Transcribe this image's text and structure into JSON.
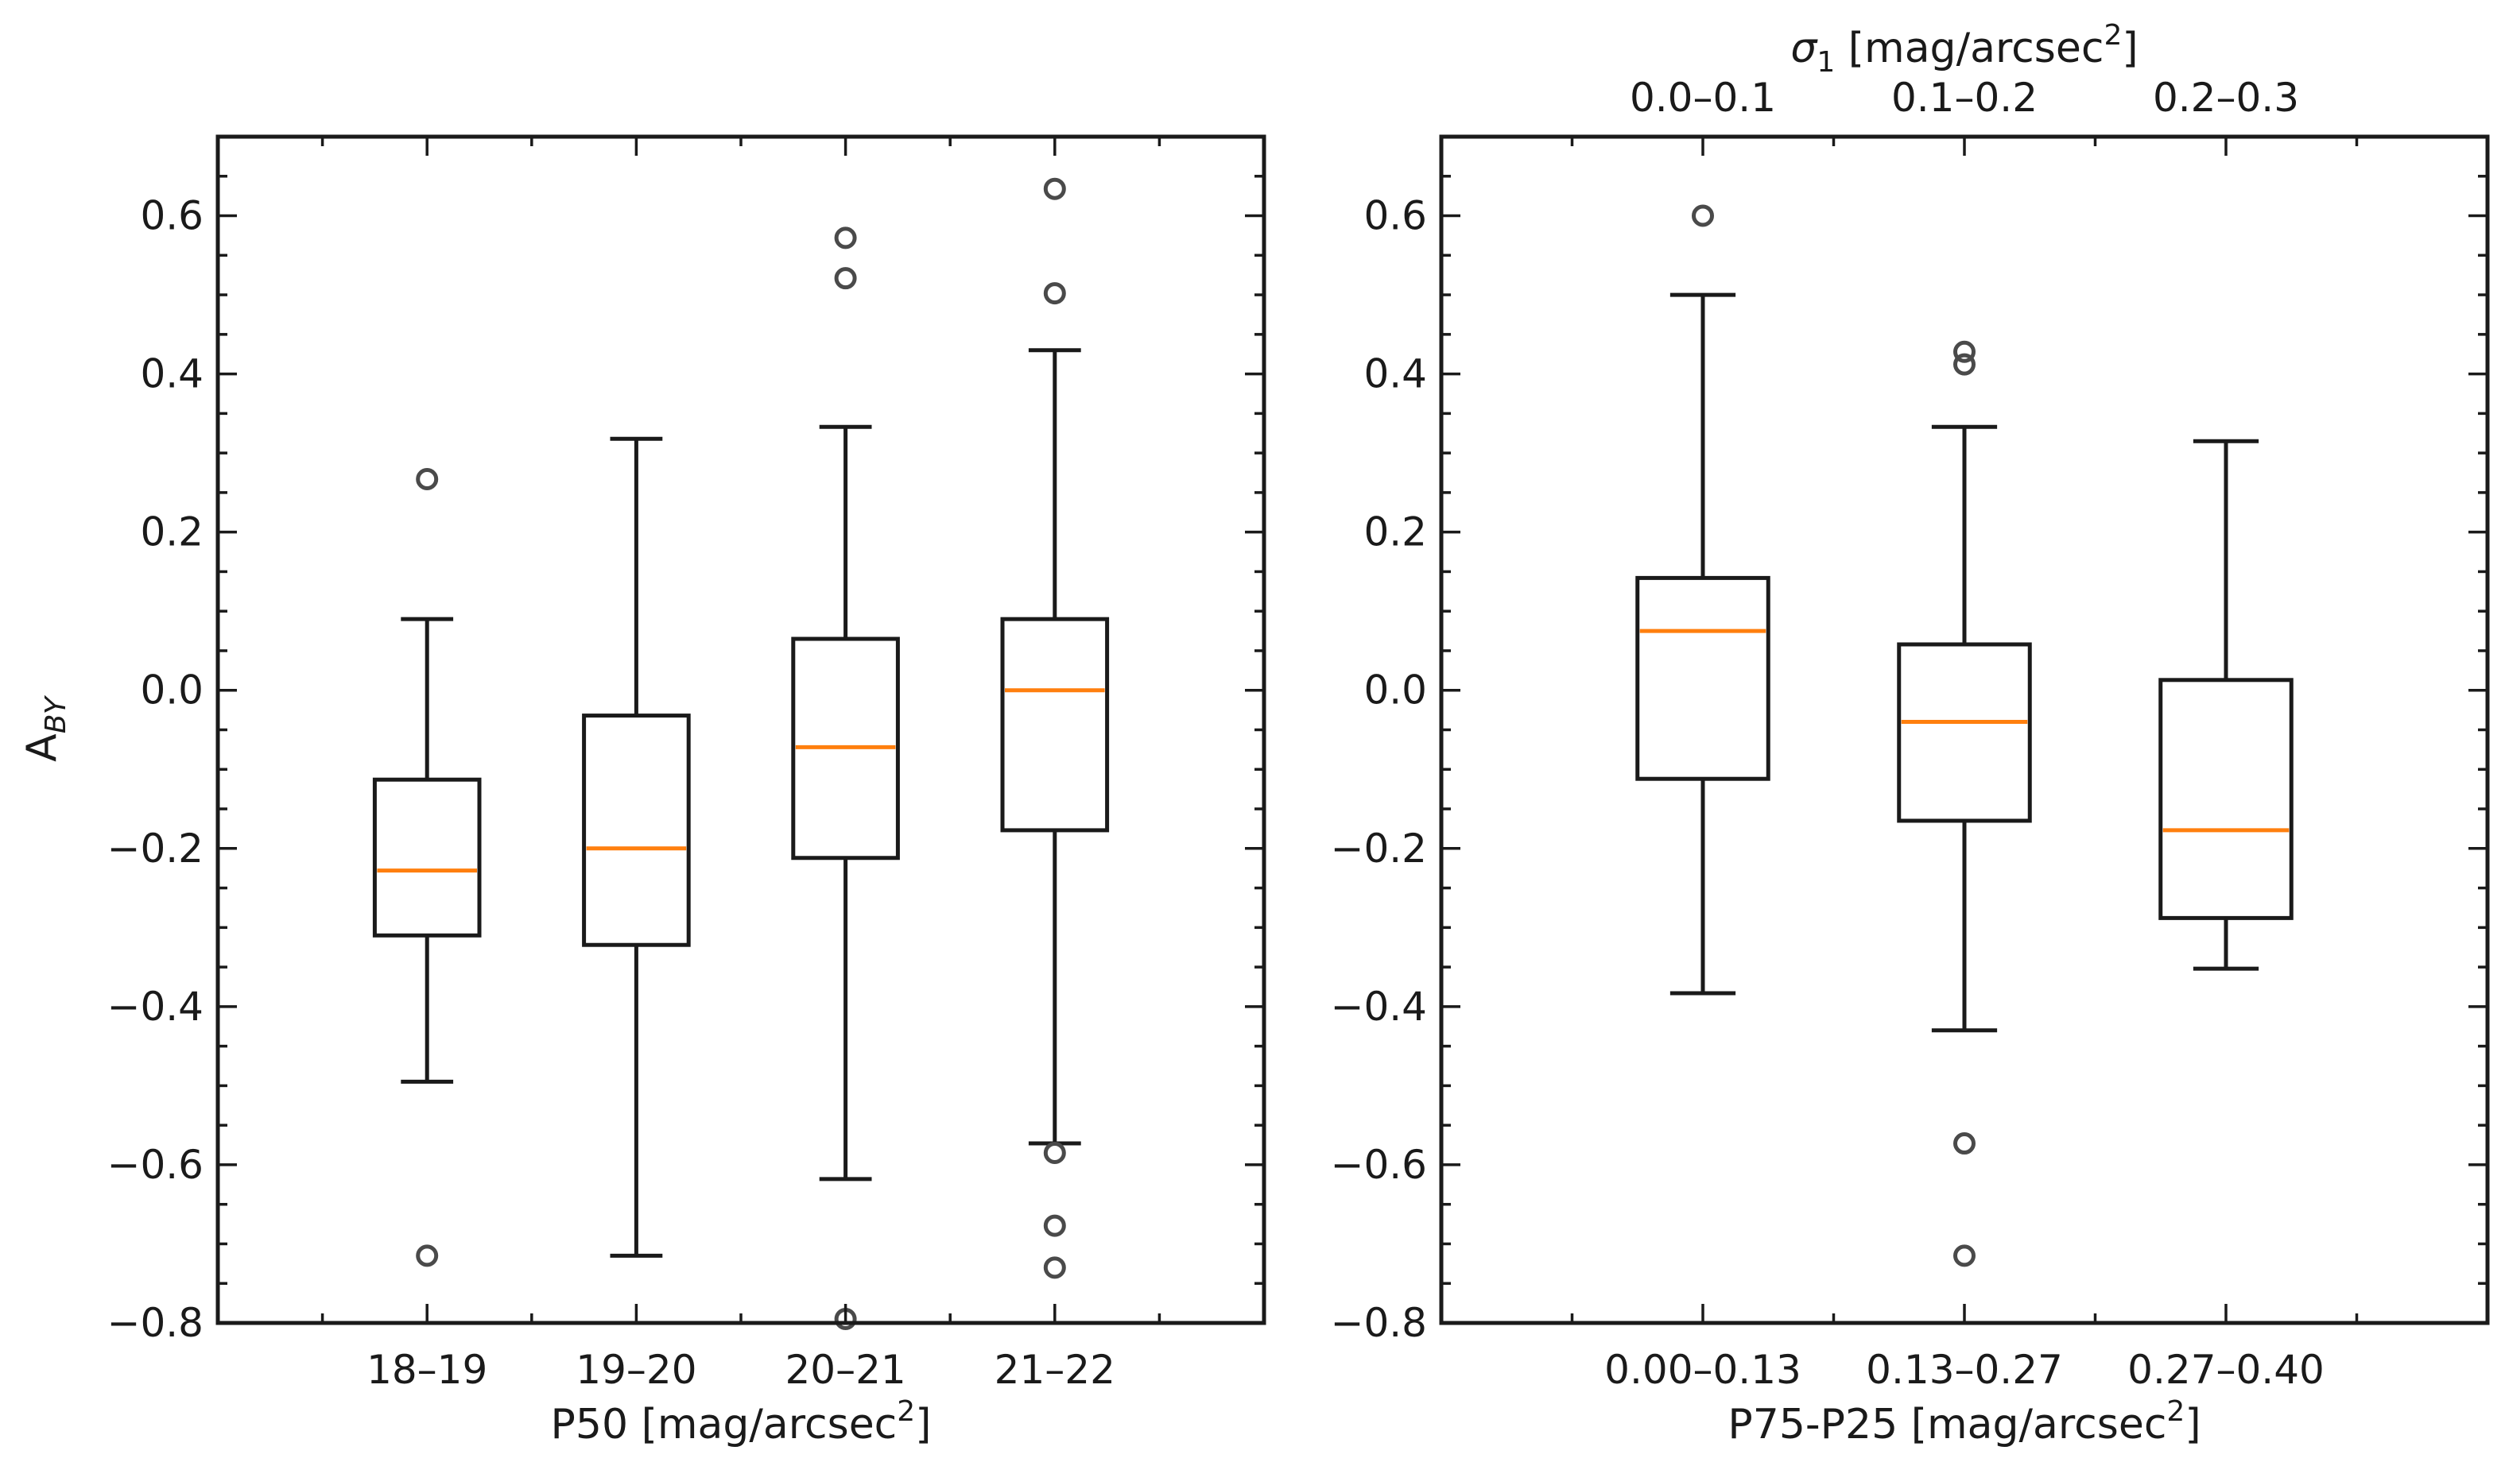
{
  "colors": {
    "median": "#ff7f0e",
    "box": "#1a1a1a",
    "flier": "#4a4a4a"
  },
  "chart_data": [
    {
      "type": "box",
      "panel": "left",
      "ylabel": "A",
      "ylabel_sub": "BY",
      "xlabel": "P50 [mag/arcsec",
      "xlabel_sup": "2",
      "xlabel_end": "]",
      "ylim": [
        -0.8,
        0.7
      ],
      "yticks": [
        -0.8,
        -0.6,
        -0.4,
        -0.2,
        0.0,
        0.2,
        0.4,
        0.6
      ],
      "ytick_labels": [
        "−0.8",
        "−0.6",
        "−0.4",
        "−0.2",
        "0.0",
        "0.2",
        "0.4",
        "0.6"
      ],
      "categories": [
        "18–19",
        "19–20",
        "20–21",
        "21–22"
      ],
      "boxes": [
        {
          "whislo": -0.495,
          "q1": -0.31,
          "med": -0.228,
          "q3": -0.113,
          "whishi": 0.09,
          "fliers": [
            0.267,
            -0.715
          ]
        },
        {
          "whislo": -0.715,
          "q1": -0.322,
          "med": -0.2,
          "q3": -0.032,
          "whishi": 0.318,
          "fliers": []
        },
        {
          "whislo": -0.618,
          "q1": -0.212,
          "med": -0.072,
          "q3": 0.065,
          "whishi": 0.333,
          "fliers": [
            0.572,
            0.521,
            -0.795
          ]
        },
        {
          "whislo": -0.573,
          "q1": -0.177,
          "med": 0.0,
          "q3": 0.09,
          "whishi": 0.43,
          "fliers": [
            0.634,
            0.502,
            -0.585,
            -0.677,
            -0.73
          ]
        }
      ]
    },
    {
      "type": "box",
      "panel": "right",
      "xlabel": "P75-P25 [mag/arcsec",
      "xlabel_sup": "2",
      "xlabel_end": "]",
      "top_xlabel": "σ",
      "top_xlabel_sub": "1",
      "top_xlabel_rest": " [mag/arcsec",
      "top_xlabel_sup": "2",
      "top_xlabel_end": "]",
      "ylim": [
        -0.8,
        0.7
      ],
      "yticks": [
        -0.8,
        -0.6,
        -0.4,
        -0.2,
        0.0,
        0.2,
        0.4,
        0.6
      ],
      "ytick_labels": [
        "−0.8",
        "−0.6",
        "−0.4",
        "−0.2",
        "0.0",
        "0.2",
        "0.4",
        "0.6"
      ],
      "categories": [
        "0.00–0.13",
        "0.13–0.27",
        "0.27–0.40"
      ],
      "top_categories": [
        "0.0–0.1",
        "0.1–0.2",
        "0.2–0.3"
      ],
      "boxes": [
        {
          "whislo": -0.383,
          "q1": -0.112,
          "med": 0.075,
          "q3": 0.142,
          "whishi": 0.5,
          "fliers": [
            0.6
          ]
        },
        {
          "whislo": -0.43,
          "q1": -0.165,
          "med": -0.04,
          "q3": 0.058,
          "whishi": 0.333,
          "fliers": [
            0.428,
            0.412,
            -0.573,
            -0.715
          ]
        },
        {
          "whislo": -0.352,
          "q1": -0.288,
          "med": -0.177,
          "q3": 0.013,
          "whishi": 0.315,
          "fliers": []
        }
      ]
    }
  ]
}
